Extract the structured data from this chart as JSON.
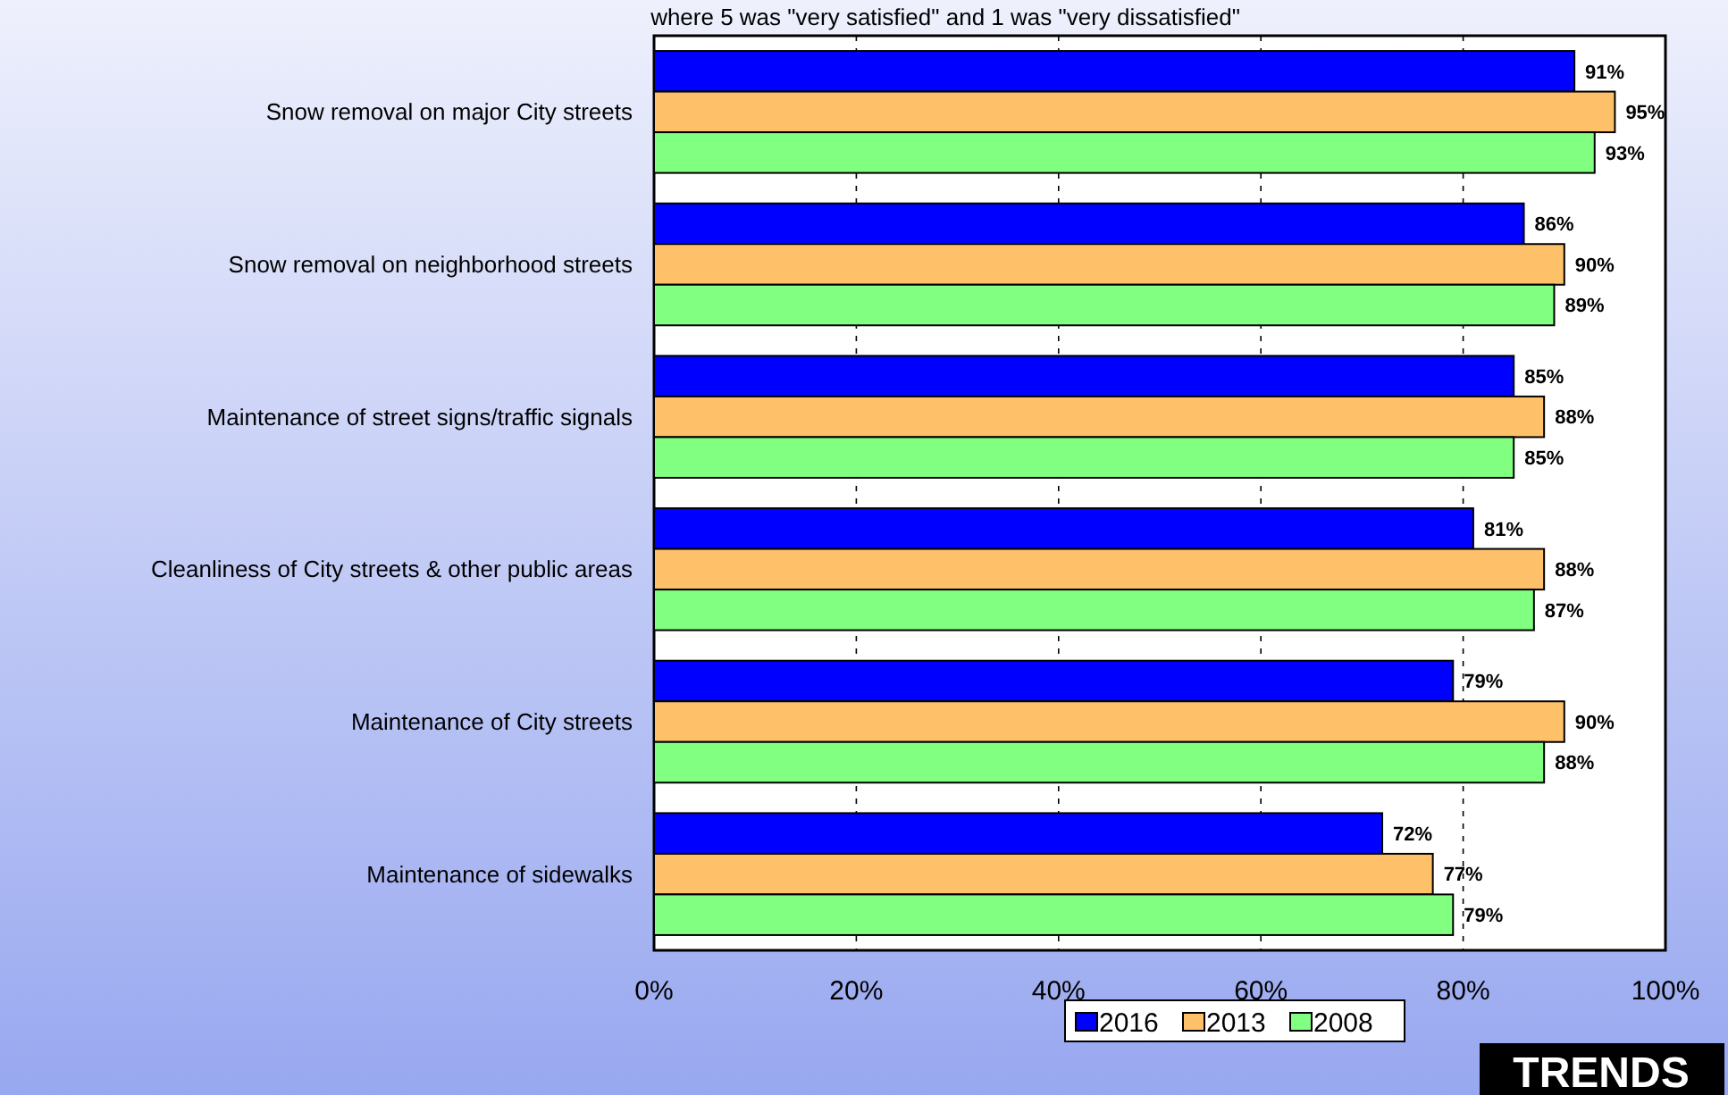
{
  "chart_data": {
    "type": "bar",
    "orientation": "horizontal",
    "subtitle": "where 5 was \"very satisfied\" and 1 was \"very dissatisfied\"",
    "categories": [
      "Snow removal on major City streets",
      "Snow removal on neighborhood streets",
      "Maintenance of street signs/traffic signals",
      "Cleanliness of City streets & other public areas",
      "Maintenance of City streets",
      "Maintenance of sidewalks"
    ],
    "series": [
      {
        "name": "2016",
        "color": "#0000ff",
        "values": [
          91,
          86,
          85,
          81,
          79,
          72
        ],
        "value_labels": [
          "91%",
          "86%",
          "85%",
          "81%",
          "79%",
          "72%"
        ]
      },
      {
        "name": "2013",
        "color": "#ffc06a",
        "values": [
          95,
          90,
          88,
          88,
          90,
          77
        ],
        "value_labels": [
          "95%",
          "90%",
          "88%",
          "88%",
          "90%",
          "77%"
        ]
      },
      {
        "name": "2008",
        "color": "#80ff80",
        "values": [
          93,
          89,
          85,
          87,
          88,
          79
        ],
        "value_labels": [
          "93%",
          "89%",
          "85%",
          "87%",
          "88%",
          "79%"
        ]
      }
    ],
    "xlim": [
      0,
      100
    ],
    "xticks": [
      {
        "value": 0,
        "label": "0%"
      },
      {
        "value": 20,
        "label": "20%"
      },
      {
        "value": 40,
        "label": "40%"
      },
      {
        "value": 60,
        "label": "60%"
      },
      {
        "value": 80,
        "label": "80%"
      },
      {
        "value": 100,
        "label": "100%"
      }
    ],
    "grid": "x",
    "legend": "bottom",
    "annotations": [
      "TRENDS"
    ]
  }
}
